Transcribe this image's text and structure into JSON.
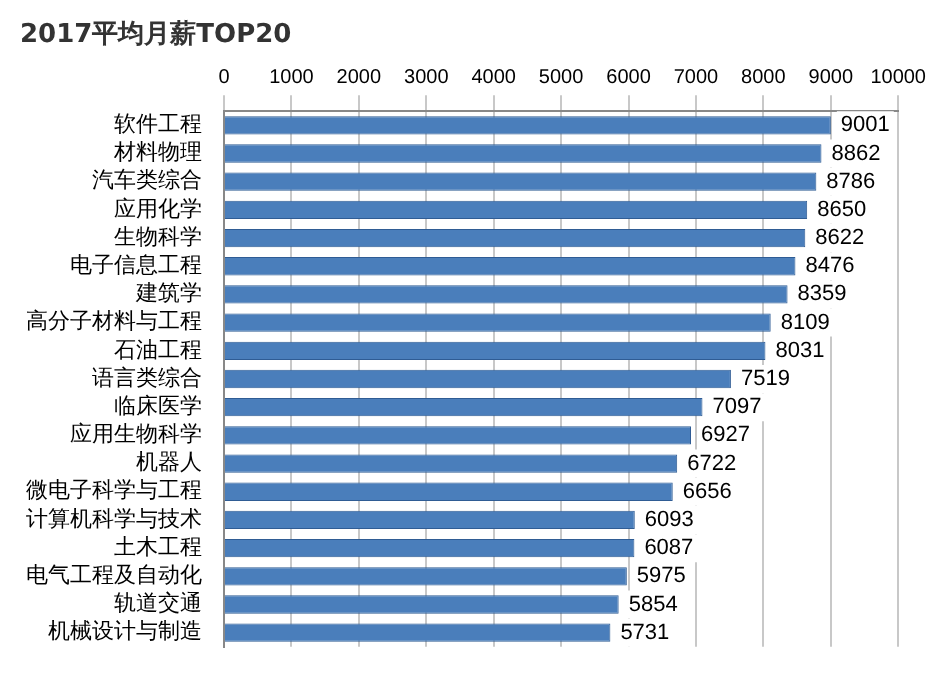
{
  "chart_data": {
    "type": "bar",
    "orientation": "horizontal",
    "title": "2017平均月薪TOP20",
    "categories": [
      "软件工程",
      "材料物理",
      "汽车类综合",
      "应用化学",
      "生物科学",
      "电子信息工程",
      "建筑学",
      "高分子材料与工程",
      "石油工程",
      "语言类综合",
      "临床医学",
      "应用生物科学",
      "机器人",
      "微电子科学与工程",
      "计算机科学与技术",
      "土木工程",
      "电气工程及自动化",
      "轨道交通",
      "机械设计与制造"
    ],
    "values": [
      9001,
      8862,
      8786,
      8650,
      8622,
      8476,
      8359,
      8109,
      8031,
      7519,
      7097,
      6927,
      6722,
      6656,
      6093,
      6087,
      5975,
      5854,
      5731
    ],
    "color": "#4a7ebb",
    "xlim": [
      0,
      10000
    ],
    "xticks": [
      0,
      1000,
      2000,
      3000,
      4000,
      5000,
      6000,
      7000,
      8000,
      9000,
      10000
    ],
    "grid": "x",
    "data_labels": true,
    "legend": false
  }
}
